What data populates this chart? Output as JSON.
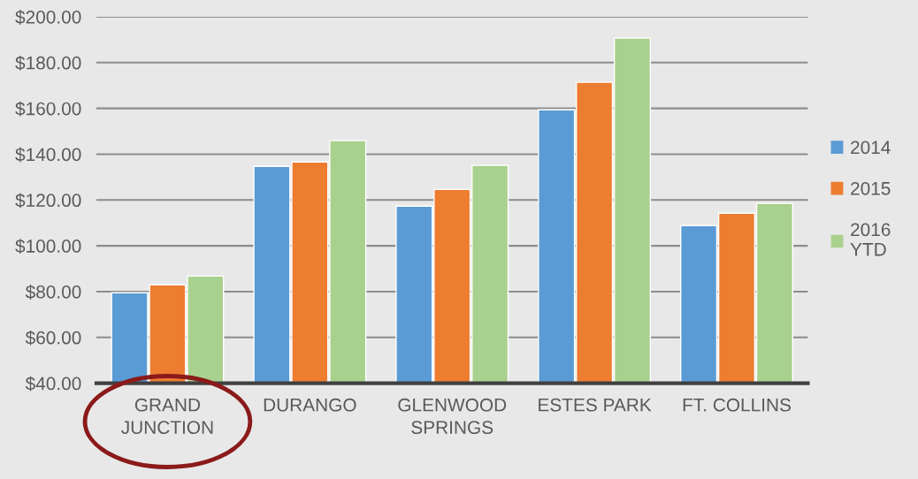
{
  "chart_data": {
    "type": "bar",
    "categories": [
      "GRAND\nJUNCTION",
      "DURANGO",
      "GLENWOOD\nSPRINGS",
      "ESTES PARK",
      "FT. COLLINS"
    ],
    "series": [
      {
        "name": "2014",
        "color": "#5b9bd5",
        "values": [
          79.5,
          134.7,
          117.3,
          159.4,
          108.8
        ]
      },
      {
        "name": "2015",
        "color": "#ed7d31",
        "values": [
          82.9,
          136.6,
          124.6,
          171.4,
          114.2
        ]
      },
      {
        "name": "2016\nYTD",
        "color": "#a9d18e",
        "values": [
          86.8,
          145.9,
          135.1,
          190.7,
          118.5
        ]
      }
    ],
    "ylim": [
      40,
      200
    ],
    "yticks": [
      {
        "value": 40,
        "label": "$40.00"
      },
      {
        "value": 60,
        "label": "$60.00"
      },
      {
        "value": 80,
        "label": "$80.00"
      },
      {
        "value": 100,
        "label": "$100.00"
      },
      {
        "value": 120,
        "label": "$120.00"
      },
      {
        "value": 140,
        "label": "$140.00"
      },
      {
        "value": 160,
        "label": "$160.00"
      },
      {
        "value": 180,
        "label": "$180.00"
      },
      {
        "value": 200,
        "label": "$200.00"
      }
    ],
    "grid": "y",
    "legend": "right"
  }
}
